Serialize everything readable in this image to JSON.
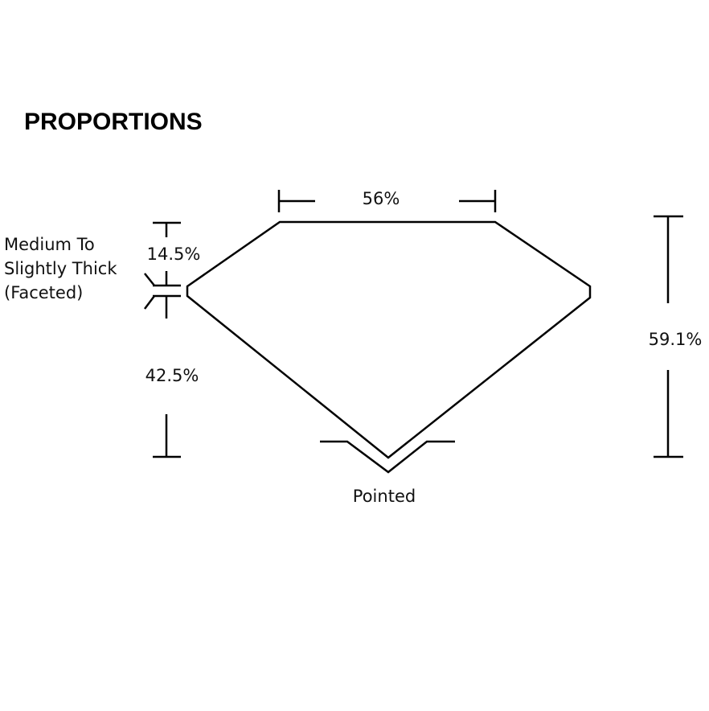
{
  "title": "PROPORTIONS",
  "labels": {
    "table": "56%",
    "crown": "14.5%",
    "pavilion": "42.5%",
    "depth": "59.1%",
    "culet": "Pointed",
    "girdle_line1": "Medium To",
    "girdle_line2": "Slightly Thick",
    "girdle_line3": "(Faceted)"
  },
  "colors": {
    "line": "#000000",
    "background": "#ffffff"
  }
}
